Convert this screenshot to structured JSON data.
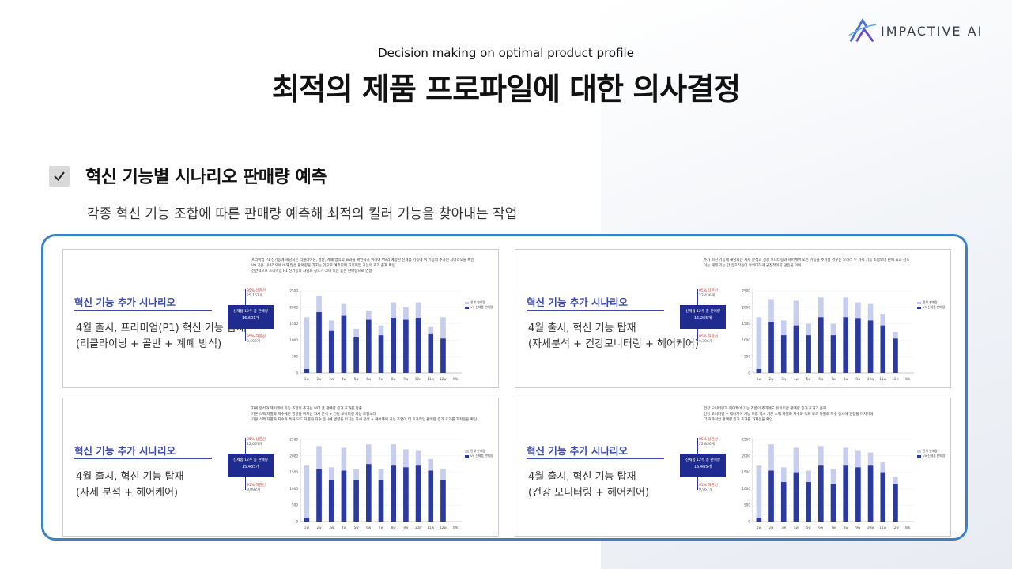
{
  "header": {
    "logo_text": "IMPACTIVE AI",
    "subtitle": "Decision making on optimal product profile",
    "title": "최적의 제품 프로파일에 대한 의사결정"
  },
  "section": {
    "title": "혁신 기능별 시나리오 판매량 예측",
    "description": "각종 혁신 기능 조합에 따른 판매량 예측해 최적의 킬러 기능을 찾아내는 작업"
  },
  "colors": {
    "frame": "#3a82c4",
    "heading": "#3b4cae",
    "bar": "#2b3a9e",
    "bar_light": "#c7cdee"
  },
  "panels": [
    {
      "heading": "혁신 기능 추가 시나리오",
      "line1": "4월 출시, 프리미엄(P1) 혁신 기능 탑재",
      "line2": "(리클라이닝 + 골반 + 계폐 방식)",
      "note": [
        "프리미엄 P1 신기능에 해당되는 리클라이닝, 골반, 계폐 방식의 효과를 확인하기 위하여 V9의 예정된 신제품 기능에 이 기능의 추가된 시나리오를 확인",
        "V9 기존 시나리오에 비해 많은 판매량을 가지는 것으로 예측되며 프리미엄 기능의 효과 존재 확인",
        "전반적으로 프리미엄 P1 신기능의 차별화 정도가 크며 이는 높은 판매량으로 연결"
      ],
      "upper_label": "95% 상한선",
      "upper_value": "25,162개",
      "box_label": "신제품 12주 총 판매량",
      "box_value": "16,601개",
      "lower_label": "95% 하한선",
      "lower_value": "9,692개",
      "chart_data": {
        "type": "bar",
        "categories": [
          "1w",
          "2w",
          "3w",
          "4w",
          "5w",
          "6w",
          "7w",
          "8w",
          "9w",
          "10w",
          "11w",
          "12w",
          "Wk"
        ],
        "series": [
          {
            "name": "V9 신제품 판매량",
            "values": [
              120,
              1850,
              1280,
              1740,
              1080,
              1620,
              1150,
              1680,
              1620,
              1680,
              1180,
              1050,
              0
            ]
          },
          {
            "name": "전체 판매량",
            "values": [
              1700,
              2350,
              1600,
              2100,
              1350,
              1900,
              1450,
              2150,
              2000,
              2150,
              1400,
              1700,
              0
            ]
          }
        ],
        "yticks": [
          0,
          500,
          1000,
          1500,
          2000,
          2500
        ],
        "ylim": [
          0,
          2500
        ]
      }
    },
    {
      "heading": "혁신 기능 추가 시나리오",
      "line1": "4월 출시, 혁신 기능 탑재",
      "line2": "(자세분석 + 건강모니터링 + 헤어케어)",
      "note": [
        "추가 혁신 기능에 해당되는 자세 분석과 건강 모니터링과 헤어케어 모든 기능을 추가할 경우는 오히려 두 가지 기능 조합보다 판매 효과 감소",
        "이는 개별 기능 간 상호작용이 유의미하게 긍정적이지 않음을 의미"
      ],
      "upper_label": "95% 상한선",
      "upper_value": "22,436개",
      "box_label": "신제품 12주 총 판매량",
      "box_value": "15,265개",
      "lower_label": "95% 하한선",
      "lower_value": "9,396개",
      "chart_data": {
        "type": "bar",
        "categories": [
          "1w",
          "2w",
          "3w",
          "4w",
          "5w",
          "6w",
          "7w",
          "8w",
          "9w",
          "10w",
          "11w",
          "12w",
          "Wk"
        ],
        "series": [
          {
            "name": "V9 신제품 판매량",
            "values": [
              120,
              1550,
              1150,
              1450,
              1150,
              1700,
              1150,
              1700,
              1650,
              1600,
              1450,
              1050,
              0
            ]
          },
          {
            "name": "전체 판매량",
            "values": [
              1700,
              2250,
              1600,
              2200,
              1500,
              2300,
              1500,
              2300,
              2150,
              2100,
              1800,
              1250,
              0
            ]
          }
        ],
        "yticks": [
          0,
          500,
          1000,
          1500,
          2000,
          2500
        ],
        "ylim": [
          0,
          2500
        ]
      }
    },
    {
      "heading": "혁신 기능 추가 시나리오",
      "line1": "4월 출시, 혁신 기능 탑재",
      "line2": "(자세 분석 + 헤어케어)",
      "note": [
        "자세 분석과 헤어케어 기능 조합의 추가는 보다 큰 판매량 증가 효과를 창출",
        "기본 스펙 차별화 지수에만 영향을 미치는 자세 분석 + 건강 모니터링 기능 조합보다",
        "기본 스펙 차별화 지수와 특화 모드 차별화 지수 동시에 영향을 미치는 자세 분석 + 헤어케어 기능 조합이 더 효과적인 판매량 증가 효과를 가져옴을 확인"
      ],
      "upper_label": "95% 상한선",
      "upper_value": "22,657개",
      "box_label": "신제품 12주 총 판매량",
      "box_value": "15,485개",
      "lower_label": "95% 하한선",
      "lower_value": "9,092개",
      "chart_data": {
        "type": "bar",
        "categories": [
          "1w",
          "2w",
          "3w",
          "4w",
          "5w",
          "6w",
          "7w",
          "8w",
          "9w",
          "10w",
          "11w",
          "12w",
          "Wk"
        ],
        "series": [
          {
            "name": "V9 신제품 판매량",
            "values": [
              120,
              1600,
              1250,
              1550,
              1250,
              1750,
              1250,
              1700,
              1650,
              1700,
              1550,
              1250,
              0
            ]
          },
          {
            "name": "전체 판매량",
            "values": [
              1700,
              2300,
              1650,
              2250,
              1600,
              2350,
              1600,
              2350,
              2200,
              2150,
              1900,
              1600,
              0
            ]
          }
        ],
        "yticks": [
          0,
          500,
          1000,
          1500,
          2000,
          2500
        ],
        "ylim": [
          0,
          2500
        ]
      }
    },
    {
      "heading": "혁신 기능 추가 시나리오",
      "line1": "4월 출시, 혁신 기능 탑재",
      "line2": "(건강 모니터링 + 헤어케어)",
      "note": [
        "건강 모니터링과 헤어케어 기능 조합의 추가에도 유의미한 판매량 증가 효과가 존재",
        "건강 모니터링 + 헤어케어 기능 조합 역시 기본 스펙 차별화 지수와 특화 모드 차별화 지수 동시에 영향을 미치기에",
        "더 효과적인 판매량 증가 효과를 가져옴을 확인"
      ],
      "upper_label": "95% 상한선",
      "upper_value": "22,850개",
      "box_label": "신제품 12주 총 판매량",
      "box_value": "15,485개",
      "lower_label": "95% 하한선",
      "lower_value": "9,967개",
      "chart_data": {
        "type": "bar",
        "categories": [
          "1w",
          "2w",
          "3w",
          "4w",
          "5w",
          "6w",
          "7w",
          "8w",
          "9w",
          "10w",
          "11w",
          "12w",
          "Wk"
        ],
        "series": [
          {
            "name": "V9 신제품 판매량",
            "values": [
              120,
              1550,
              1200,
              1500,
              1200,
              1700,
              1150,
              1700,
              1650,
              1700,
              1500,
              1150,
              0
            ]
          },
          {
            "name": "전체 판매량",
            "values": [
              1700,
              2350,
              1650,
              2250,
              1550,
              2300,
              1600,
              2250,
              2150,
              2100,
              1800,
              1350,
              0
            ]
          }
        ],
        "yticks": [
          0,
          500,
          1000,
          1500,
          2000,
          2500
        ],
        "ylim": [
          0,
          2500
        ]
      }
    }
  ]
}
